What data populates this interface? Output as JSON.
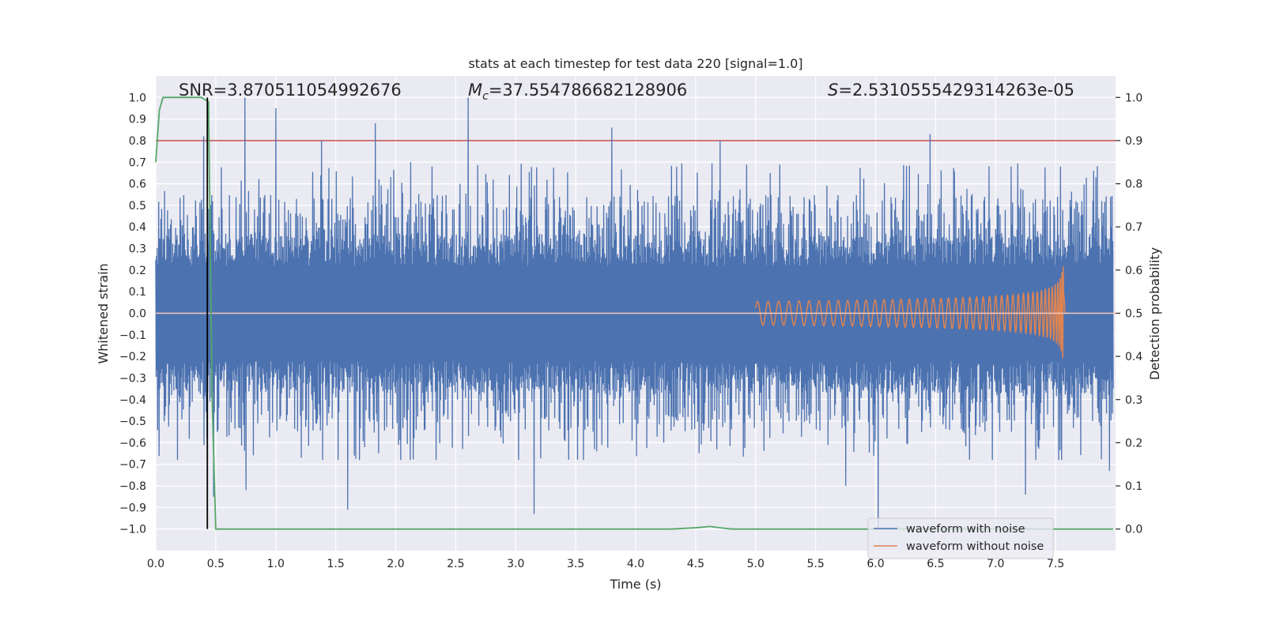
{
  "chart_data": {
    "type": "line",
    "title": "stats at each timestep for test data 220 [signal=1.0]",
    "xlabel": "Time (s)",
    "ylabel": "Whitened strain",
    "y2label": "Detection probability",
    "xlim": [
      0.0,
      8.0
    ],
    "ylim": [
      -1.1,
      1.1
    ],
    "y2lim": [
      -0.05,
      1.05
    ],
    "x_ticks": [
      0.0,
      0.5,
      1.0,
      1.5,
      2.0,
      2.5,
      3.0,
      3.5,
      4.0,
      4.5,
      5.0,
      5.5,
      6.0,
      6.5,
      7.0,
      7.5
    ],
    "x_tick_labels": [
      "0.0",
      "0.5",
      "1.0",
      "1.5",
      "2.0",
      "2.5",
      "3.0",
      "3.5",
      "4.0",
      "4.5",
      "5.0",
      "5.5",
      "6.0",
      "6.5",
      "7.0",
      "7.5"
    ],
    "y_ticks": [
      -1.0,
      -0.9,
      -0.8,
      -0.7,
      -0.6,
      -0.5,
      -0.4,
      -0.3,
      -0.2,
      -0.1,
      0.0,
      0.1,
      0.2,
      0.3,
      0.4,
      0.5,
      0.6,
      0.7,
      0.8,
      0.9,
      1.0
    ],
    "y_tick_labels": [
      "−1.0",
      "−0.9",
      "−0.8",
      "−0.7",
      "−0.6",
      "−0.5",
      "−0.4",
      "−0.3",
      "−0.2",
      "−0.1",
      "0.0",
      "0.1",
      "0.2",
      "0.3",
      "0.4",
      "0.5",
      "0.6",
      "0.7",
      "0.8",
      "0.9",
      "1.0"
    ],
    "y2_ticks": [
      0.0,
      0.1,
      0.2,
      0.3,
      0.4,
      0.5,
      0.6,
      0.7,
      0.8,
      0.9,
      1.0
    ],
    "y2_tick_labels": [
      "0.0",
      "0.1",
      "0.2",
      "0.3",
      "0.4",
      "0.5",
      "0.6",
      "0.7",
      "0.8",
      "0.9",
      "1.0"
    ],
    "grid": true,
    "annotations": {
      "snr": "SNR=3.870511054992676",
      "mc_symbol": "M",
      "mc_subscript": "c",
      "mc_value": "=37.554786682128906",
      "s_symbol": "S",
      "s_value": "=2.5310555429314263e-05"
    },
    "legend": {
      "placement": "lower-right",
      "entries": [
        "waveform with noise",
        "waveform without noise"
      ]
    },
    "series": [
      {
        "name": "waveform with noise",
        "color": "#4c72b0",
        "axis": "left",
        "kind": "noise",
        "x_range": [
          0.0,
          7.98
        ],
        "typical_upper": 0.55,
        "typical_lower": -0.5,
        "peaks": [
          {
            "x": 0.74,
            "y": 1.0
          },
          {
            "x": 1.0,
            "y": 0.95
          },
          {
            "x": 1.83,
            "y": 0.88
          },
          {
            "x": 2.6,
            "y": 1.0
          },
          {
            "x": 3.8,
            "y": 0.86
          },
          {
            "x": 6.45,
            "y": 0.83
          },
          {
            "x": 0.4,
            "y": 0.82
          },
          {
            "x": 1.38,
            "y": 0.8
          },
          {
            "x": 4.7,
            "y": 0.8
          },
          {
            "x": 0.48,
            "y": -0.85
          },
          {
            "x": 1.6,
            "y": -0.91
          },
          {
            "x": 3.15,
            "y": -0.93
          },
          {
            "x": 6.02,
            "y": -1.0
          },
          {
            "x": 7.25,
            "y": -0.84
          },
          {
            "x": 0.75,
            "y": -0.82
          },
          {
            "x": 5.75,
            "y": -0.8
          },
          {
            "x": 7.95,
            "y": -0.73
          }
        ]
      },
      {
        "name": "waveform without noise",
        "color": "#dd8452",
        "axis": "left",
        "kind": "chirp",
        "x_range": [
          5.0,
          7.58
        ],
        "peak_x": 7.57,
        "peak_amplitude": 0.22
      },
      {
        "name": "detection probability",
        "color": "#55a868",
        "axis": "right",
        "x": [
          0.0,
          0.03,
          0.06,
          0.1,
          0.15,
          0.2,
          0.3,
          0.38,
          0.44,
          0.45,
          0.47,
          0.5,
          0.6,
          1.0,
          2.0,
          3.0,
          4.0,
          4.3,
          4.5,
          4.62,
          4.7,
          4.8,
          5.0,
          6.0,
          7.0,
          7.5,
          7.98
        ],
        "y": [
          0.85,
          0.97,
          1.0,
          1.0,
          1.0,
          1.0,
          1.0,
          1.0,
          0.99,
          0.75,
          0.3,
          0.0,
          0.0,
          0.0,
          0.0,
          0.0,
          0.0,
          0.0,
          0.003,
          0.006,
          0.003,
          0.0,
          0.0,
          0.0,
          0.0,
          0.0,
          0.0
        ]
      }
    ],
    "reference_lines": [
      {
        "orientation": "horizontal",
        "axis": "right",
        "value": 0.9,
        "color": "#c44e52"
      },
      {
        "orientation": "horizontal",
        "axis": "left",
        "value": 0.0,
        "color": "#f7c8b8"
      },
      {
        "orientation": "vertical",
        "value": 0.43,
        "y_from": -1.0,
        "y_to": 1.0,
        "color": "#000000"
      }
    ]
  }
}
